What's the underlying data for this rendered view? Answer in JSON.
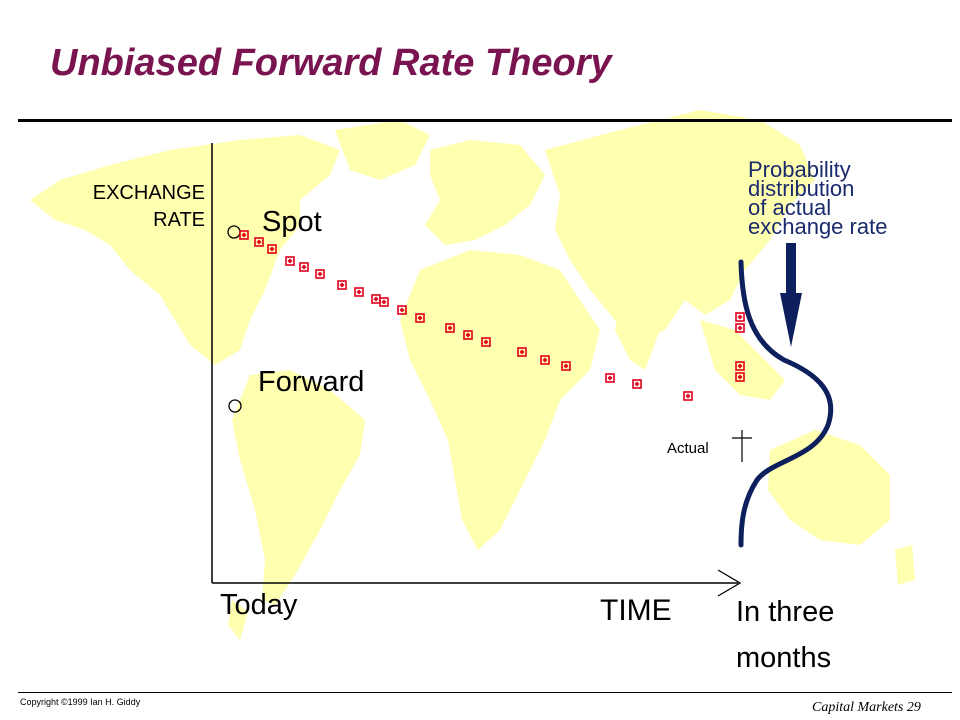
{
  "slide": {
    "title": "Unbiased Forward Rate Theory",
    "copyright": "Copyright ©1999 Ian H. Giddy",
    "footer": "Capital Markets 29"
  },
  "axes": {
    "y_label_line1": "EXCHANGE",
    "y_label_line2": "RATE",
    "x_label": "TIME",
    "x_start_label": "Today",
    "x_end_label_line1": "In three",
    "x_end_label_line2": "months"
  },
  "labels": {
    "spot": "Spot",
    "forward": "Forward",
    "actual": "Actual",
    "probability_line1": "Probability",
    "probability_line2": "distribution",
    "probability_line3": "of actual",
    "probability_line4": "exchange rate"
  },
  "colors": {
    "title": "#7a1450",
    "map_land": "#ffffb0",
    "marker": "#e0001b",
    "distribution_curve": "#0d1f5c",
    "axis": "#000000"
  },
  "icons": {
    "arrow": "arrow-down-icon",
    "actual_marker": "crosshair-icon",
    "point_marker": "diamond-box-marker"
  }
}
